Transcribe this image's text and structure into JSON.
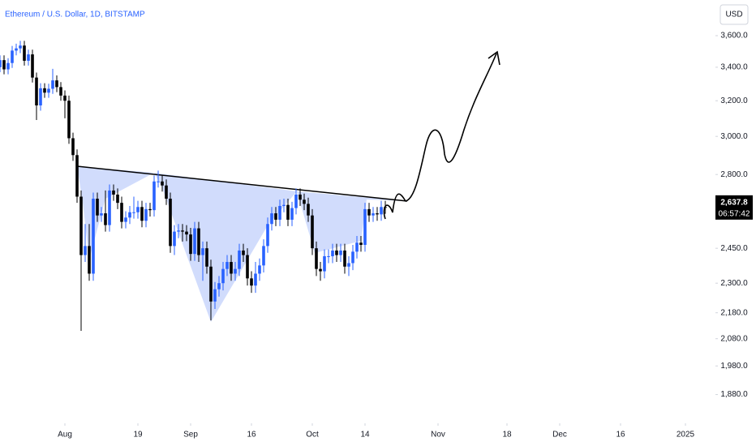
{
  "chart_data": {
    "type": "candlestick",
    "title": "Ethereum / U.S. Dollar, 1D, BITSTAMP",
    "currency": "USD",
    "price_label": "2,637.8",
    "timer": "06:57:42",
    "up_color": "#2962ff",
    "down_color": "#000000",
    "log_scale": true,
    "x": [
      "2024-07-16",
      "2024-07-17",
      "2024-07-18",
      "2024-07-19",
      "2024-07-20",
      "2024-07-21",
      "2024-07-22",
      "2024-07-23",
      "2024-07-24",
      "2024-07-25",
      "2024-07-26",
      "2024-07-27",
      "2024-07-28",
      "2024-07-29",
      "2024-07-30",
      "2024-07-31",
      "2024-08-01",
      "2024-08-02",
      "2024-08-03",
      "2024-08-04",
      "2024-08-05",
      "2024-08-06",
      "2024-08-07",
      "2024-08-08",
      "2024-08-09",
      "2024-08-10",
      "2024-08-11",
      "2024-08-12",
      "2024-08-13",
      "2024-08-14",
      "2024-08-15",
      "2024-08-16",
      "2024-08-17",
      "2024-08-18",
      "2024-08-19",
      "2024-08-20",
      "2024-08-21",
      "2024-08-22",
      "2024-08-23",
      "2024-08-24",
      "2024-08-25",
      "2024-08-26",
      "2024-08-27",
      "2024-08-28",
      "2024-08-29",
      "2024-08-30",
      "2024-08-31",
      "2024-09-01",
      "2024-09-02",
      "2024-09-03",
      "2024-09-04",
      "2024-09-05",
      "2024-09-06",
      "2024-09-07",
      "2024-09-08",
      "2024-09-09",
      "2024-09-10",
      "2024-09-11",
      "2024-09-12",
      "2024-09-13",
      "2024-09-14",
      "2024-09-15",
      "2024-09-16",
      "2024-09-17",
      "2024-09-18",
      "2024-09-19",
      "2024-09-20",
      "2024-09-21",
      "2024-09-22",
      "2024-09-23",
      "2024-09-24",
      "2024-09-25",
      "2024-09-26",
      "2024-09-27",
      "2024-09-28",
      "2024-09-29",
      "2024-09-30",
      "2024-10-01",
      "2024-10-02",
      "2024-10-03",
      "2024-10-04",
      "2024-10-05",
      "2024-10-06",
      "2024-10-07",
      "2024-10-08",
      "2024-10-09",
      "2024-10-10",
      "2024-10-11",
      "2024-10-12",
      "2024-10-13",
      "2024-10-14",
      "2024-10-15",
      "2024-10-16",
      "2024-10-17",
      "2024-10-18",
      "2024-10-19"
    ],
    "open": [
      3400,
      3444,
      3387,
      3426,
      3504,
      3518,
      3536,
      3440,
      3480,
      3337,
      3173,
      3273,
      3247,
      3270,
      3320,
      3280,
      3230,
      3200,
      2990,
      2900,
      2690,
      2420,
      2460,
      2340,
      2680,
      2600,
      2610,
      2555,
      2720,
      2700,
      2660,
      2570,
      2590,
      2615,
      2615,
      2640,
      2575,
      2630,
      2625,
      2765,
      2765,
      2745,
      2680,
      2460,
      2525,
      2530,
      2525,
      2512,
      2425,
      2540,
      2420,
      2450,
      2370,
      2225,
      2275,
      2300,
      2360,
      2390,
      2340,
      2360,
      2440,
      2420,
      2320,
      2290,
      2340,
      2375,
      2460,
      2560,
      2610,
      2580,
      2645,
      2650,
      2580,
      2635,
      2700,
      2675,
      2655,
      2600,
      2450,
      2360,
      2350,
      2415,
      2415,
      2440,
      2420,
      2440,
      2370,
      2385,
      2435,
      2475,
      2465,
      2630,
      2600,
      2610,
      2605,
      2640
    ],
    "high": [
      3474,
      3474,
      3456,
      3534,
      3548,
      3566,
      3566,
      3510,
      3510,
      3367,
      3303,
      3303,
      3300,
      3390,
      3350,
      3310,
      3260,
      3230,
      3020,
      2930,
      2720,
      2560,
      2560,
      2710,
      2710,
      2640,
      2720,
      2750,
      2750,
      2730,
      2690,
      2620,
      2645,
      2690,
      2670,
      2670,
      2660,
      2660,
      2795,
      2820,
      2795,
      2775,
      2710,
      2555,
      2560,
      2560,
      2555,
      2542,
      2570,
      2570,
      2480,
      2480,
      2400,
      2305,
      2330,
      2390,
      2420,
      2420,
      2390,
      2470,
      2470,
      2450,
      2350,
      2390,
      2405,
      2490,
      2590,
      2640,
      2640,
      2675,
      2680,
      2680,
      2665,
      2730,
      2730,
      2705,
      2685,
      2630,
      2480,
      2390,
      2445,
      2445,
      2470,
      2470,
      2470,
      2470,
      2415,
      2465,
      2505,
      2505,
      2660,
      2660,
      2640,
      2640,
      2670,
      2670
    ],
    "low": [
      3370,
      3357,
      3357,
      3396,
      3474,
      3488,
      3410,
      3410,
      3307,
      3090,
      3143,
      3217,
      3217,
      3240,
      3250,
      3200,
      3100,
      2960,
      2870,
      2660,
      2110,
      2390,
      2310,
      2310,
      2570,
      2570,
      2525,
      2525,
      2670,
      2630,
      2540,
      2540,
      2560,
      2585,
      2585,
      2545,
      2545,
      2595,
      2595,
      2735,
      2715,
      2650,
      2430,
      2420,
      2495,
      2480,
      2482,
      2395,
      2395,
      2390,
      2310,
      2340,
      2150,
      2195,
      2245,
      2270,
      2330,
      2310,
      2310,
      2330,
      2390,
      2290,
      2260,
      2260,
      2310,
      2345,
      2430,
      2530,
      2550,
      2550,
      2615,
      2550,
      2550,
      2605,
      2645,
      2625,
      2570,
      2420,
      2330,
      2310,
      2320,
      2385,
      2385,
      2390,
      2390,
      2340,
      2330,
      2355,
      2405,
      2435,
      2435,
      2570,
      2570,
      2575,
      2575,
      2608
    ],
    "close": [
      3444,
      3387,
      3426,
      3504,
      3518,
      3536,
      3440,
      3480,
      3337,
      3173,
      3273,
      3247,
      3270,
      3320,
      3280,
      3230,
      3200,
      2990,
      2900,
      2690,
      2420,
      2460,
      2340,
      2680,
      2600,
      2610,
      2555,
      2720,
      2700,
      2660,
      2570,
      2590,
      2615,
      2615,
      2640,
      2575,
      2630,
      2625,
      2765,
      2765,
      2745,
      2680,
      2460,
      2525,
      2530,
      2525,
      2512,
      2425,
      2540,
      2420,
      2450,
      2370,
      2225,
      2275,
      2300,
      2360,
      2390,
      2340,
      2360,
      2440,
      2420,
      2320,
      2290,
      2340,
      2375,
      2460,
      2560,
      2610,
      2580,
      2645,
      2650,
      2580,
      2635,
      2700,
      2675,
      2655,
      2600,
      2450,
      2360,
      2350,
      2415,
      2415,
      2440,
      2420,
      2440,
      2370,
      2385,
      2435,
      2475,
      2465,
      2630,
      2600,
      2610,
      2605,
      2640,
      2637.8
    ],
    "xlim": [
      "2024-07-16",
      "2025-01-08"
    ],
    "xticks": [
      {
        "value": "2024-08-01",
        "label": "Aug"
      },
      {
        "value": "2024-08-19",
        "label": "19"
      },
      {
        "value": "2024-09-01",
        "label": "Sep"
      },
      {
        "value": "2024-09-16",
        "label": "16"
      },
      {
        "value": "2024-10-01",
        "label": "Oct"
      },
      {
        "value": "2024-10-14",
        "label": "14"
      },
      {
        "value": "2024-11-01",
        "label": "Nov"
      },
      {
        "value": "2024-11-18",
        "label": "18"
      },
      {
        "value": "2024-12-01",
        "label": "Dec"
      },
      {
        "value": "2024-12-16",
        "label": "16"
      },
      {
        "value": "2025-01-01",
        "label": "2025"
      }
    ],
    "ylim": [
      1790,
      3840
    ],
    "yticks": [
      {
        "value": 3600,
        "label": "3,600.0"
      },
      {
        "value": 3400,
        "label": "3,400.0"
      },
      {
        "value": 3200,
        "label": "3,200.0"
      },
      {
        "value": 3000,
        "label": "3,000.0"
      },
      {
        "value": 2800,
        "label": "2,800.0"
      },
      {
        "value": 2450,
        "label": "2,450.0"
      },
      {
        "value": 2300,
        "label": "2,300.0"
      },
      {
        "value": 2180,
        "label": "2,180.0"
      },
      {
        "value": 2080,
        "label": "2,080.0"
      },
      {
        "value": 1980,
        "label": "1,980.0"
      },
      {
        "value": 1880,
        "label": "1,880.0"
      }
    ]
  }
}
